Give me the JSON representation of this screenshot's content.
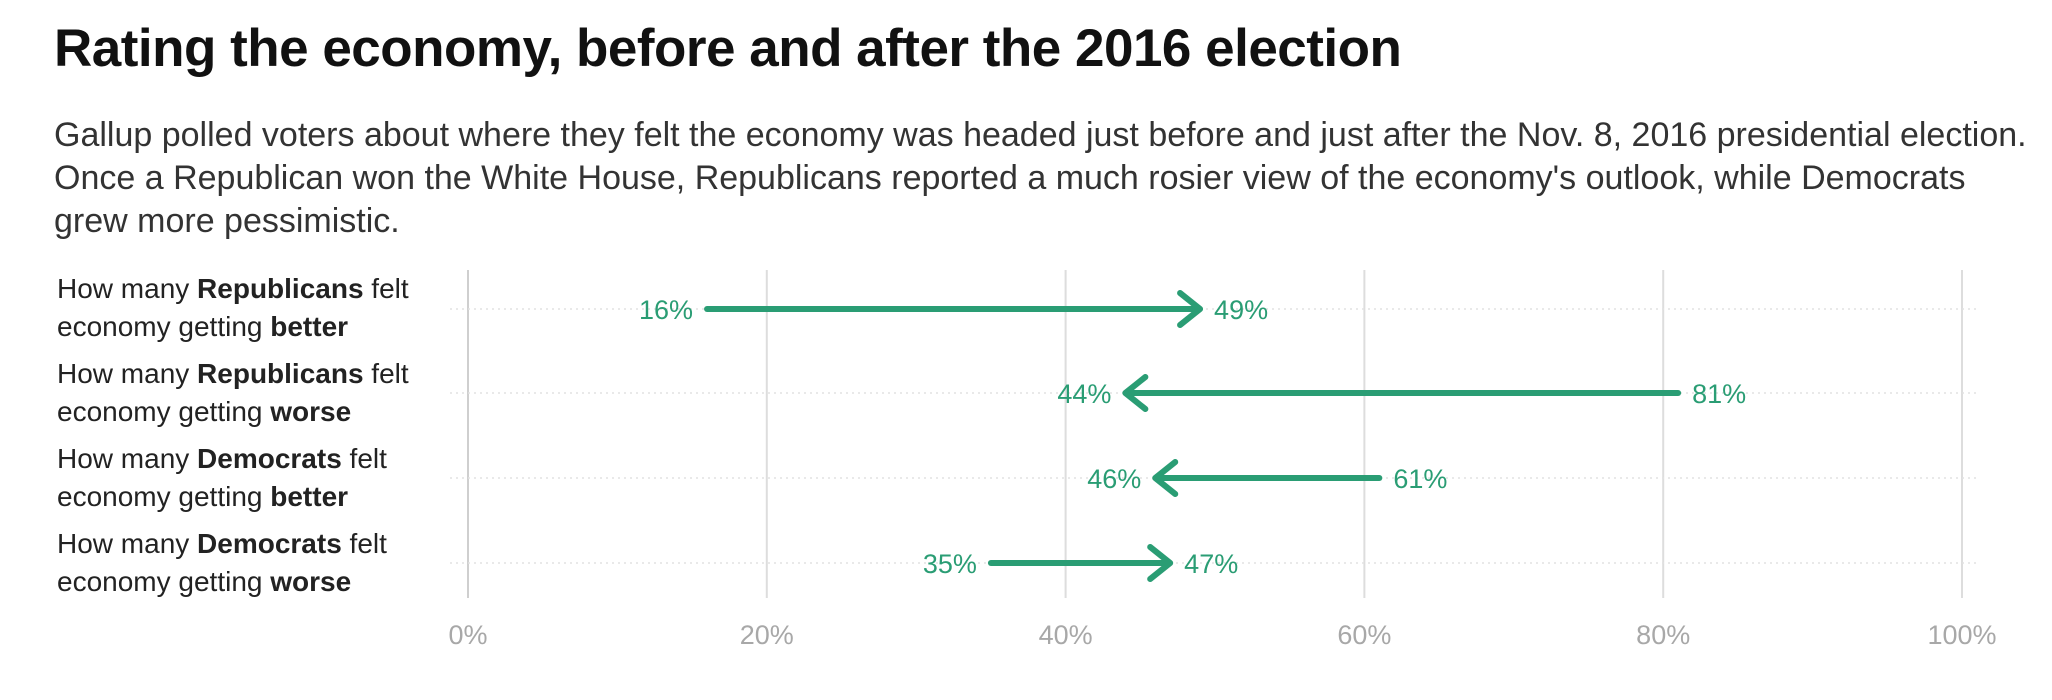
{
  "title": "Rating the economy, before and after the 2016 election",
  "subtitle": "Gallup polled voters about where they felt the economy was headed just before and just after the Nov. 8, 2016 presidential election. Once a Republican won the White House, Republicans reported a much rosier view of the economy's outlook, while Democrats grew more pessimistic.",
  "colors": {
    "arrow": "#2a9d74",
    "label": "#2a9d74",
    "grid": "#dddddd",
    "tick_text": "#a8a8a8"
  },
  "chart_data": {
    "type": "arrow",
    "title": "Rating the economy, before and after the 2016 election",
    "xlim": [
      0,
      100
    ],
    "x_ticks": [
      0,
      20,
      40,
      60,
      80,
      100
    ],
    "x_tick_labels": [
      "0%",
      "20%",
      "40%",
      "60%",
      "80%",
      "100%"
    ],
    "rows": [
      {
        "label_parts": [
          {
            "text": "How many ",
            "bold": false
          },
          {
            "text": "Republicans",
            "bold": true
          },
          {
            "text": " felt economy getting ",
            "bold": false
          },
          {
            "text": "better",
            "bold": true
          }
        ],
        "before": 16,
        "after": 49,
        "before_label": "16%",
        "after_label": "49%"
      },
      {
        "label_parts": [
          {
            "text": "How many ",
            "bold": false
          },
          {
            "text": "Republicans",
            "bold": true
          },
          {
            "text": " felt economy getting ",
            "bold": false
          },
          {
            "text": "worse",
            "bold": true
          }
        ],
        "before": 81,
        "after": 44,
        "before_label": "81%",
        "after_label": "44%"
      },
      {
        "label_parts": [
          {
            "text": "How many ",
            "bold": false
          },
          {
            "text": "Democrats",
            "bold": true
          },
          {
            "text": " felt economy getting ",
            "bold": false
          },
          {
            "text": "better",
            "bold": true
          }
        ],
        "before": 61,
        "after": 46,
        "before_label": "61%",
        "after_label": "46%"
      },
      {
        "label_parts": [
          {
            "text": "How many ",
            "bold": false
          },
          {
            "text": "Democrats",
            "bold": true
          },
          {
            "text": " felt economy getting ",
            "bold": false
          },
          {
            "text": "worse",
            "bold": true
          }
        ],
        "before": 35,
        "after": 47,
        "before_label": "35%",
        "after_label": "47%"
      }
    ]
  }
}
